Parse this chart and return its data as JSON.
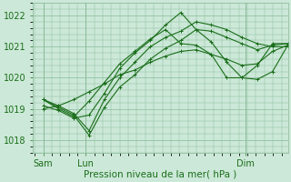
{
  "background_color": "#cce8d8",
  "grid_color": "#88bb99",
  "line_color": "#1a6e1a",
  "xlabel": "Pression niveau de la mer( hPa )",
  "xlabel_fontsize": 7.5,
  "tick_label_fontsize": 7,
  "ylim": [
    1017.6,
    1022.4
  ],
  "yticks": [
    1018,
    1019,
    1020,
    1021,
    1022
  ],
  "xlim": [
    0,
    48
  ],
  "xtick_positions": [
    2,
    10,
    40
  ],
  "xtick_labels": [
    "Sam",
    "Lun",
    "Dim"
  ],
  "vline_positions": [
    2,
    10,
    40
  ],
  "num_points": 17,
  "x_start": 2,
  "x_end": 48,
  "series": [
    [
      1019.3,
      1019.1,
      1018.85,
      1018.3,
      1019.3,
      1020.0,
      1020.5,
      1021.0,
      1021.3,
      1021.5,
      1021.8,
      1021.7,
      1021.55,
      1021.3,
      1021.1,
      1021.0,
      1021.0
    ],
    [
      1019.3,
      1019.05,
      1018.8,
      1018.15,
      1019.05,
      1019.7,
      1020.1,
      1020.6,
      1020.95,
      1021.2,
      1021.55,
      1021.5,
      1021.3,
      1021.1,
      1020.9,
      1021.05,
      1021.1
    ],
    [
      1019.1,
      1018.95,
      1018.7,
      1018.8,
      1019.5,
      1020.3,
      1020.8,
      1021.2,
      1021.7,
      1022.1,
      1021.55,
      1021.15,
      1020.5,
      1020.0,
      1019.95,
      1020.2,
      1021.05
    ],
    [
      1019.3,
      1019.0,
      1018.75,
      1019.25,
      1019.85,
      1020.45,
      1020.85,
      1021.25,
      1021.55,
      1021.1,
      1021.05,
      1020.75,
      1020.0,
      1020.0,
      1020.4,
      1021.1,
      1021.1
    ],
    [
      1019.0,
      1019.1,
      1019.3,
      1019.55,
      1019.8,
      1020.1,
      1020.25,
      1020.5,
      1020.7,
      1020.85,
      1020.9,
      1020.75,
      1020.6,
      1020.4,
      1020.45,
      1020.85,
      1021.05
    ]
  ]
}
